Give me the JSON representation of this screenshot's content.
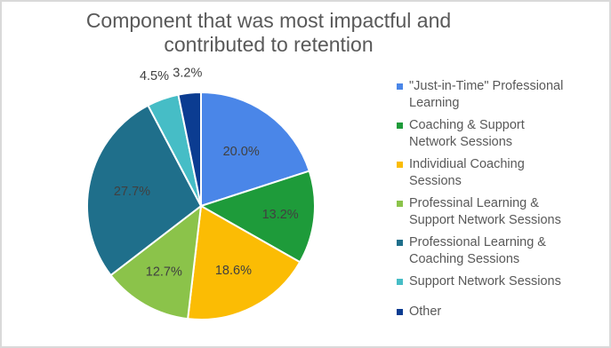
{
  "colors": {
    "title_text": "#595959",
    "legend_text": "#595959",
    "label_text": "#404040",
    "slice_border": "#ffffff"
  },
  "chart_data": {
    "type": "pie",
    "title": "Component that was most impactful and contributed to retention",
    "title_lines": [
      "Component that was most impactful and",
      "contributed to retention"
    ],
    "legend_position": "right",
    "slices": [
      {
        "name": "\"Just-in-Time\" Professional Learning",
        "legend_lines": [
          "\"Just-in-Time\" Professional",
          "Learning"
        ],
        "value": 20.0,
        "label": "20.0%",
        "color": "#4a86e8"
      },
      {
        "name": "Coaching & Support Network Sessions",
        "legend_lines": [
          "Coaching & Support",
          "Network Sessions"
        ],
        "value": 13.2,
        "label": "13.2%",
        "color": "#1e9b3a"
      },
      {
        "name": "Individiual Coaching Sessions",
        "legend_lines": [
          "Individiual Coaching",
          "Sessions"
        ],
        "value": 18.6,
        "label": "18.6%",
        "color": "#fbbc04"
      },
      {
        "name": "Professinal Learning & Support Network Sessions",
        "legend_lines": [
          "Professinal Learning &",
          "Support Network Sessions"
        ],
        "value": 12.7,
        "label": "12.7%",
        "color": "#8bc34a"
      },
      {
        "name": "Professional Learning & Coaching Sessions",
        "legend_lines": [
          "Professional Learning &",
          "Coaching Sessions"
        ],
        "value": 27.7,
        "label": "27.7%",
        "color": "#1f6f8b"
      },
      {
        "name": "Support Network Sessions",
        "legend_lines": [
          "Support Network Sessions"
        ],
        "value": 4.5,
        "label": "4.5%",
        "color": "#46bdc6"
      },
      {
        "name": "Other",
        "legend_lines": [
          "Other"
        ],
        "value": 3.2,
        "label": "3.2%",
        "color": "#0b3c91"
      }
    ]
  }
}
